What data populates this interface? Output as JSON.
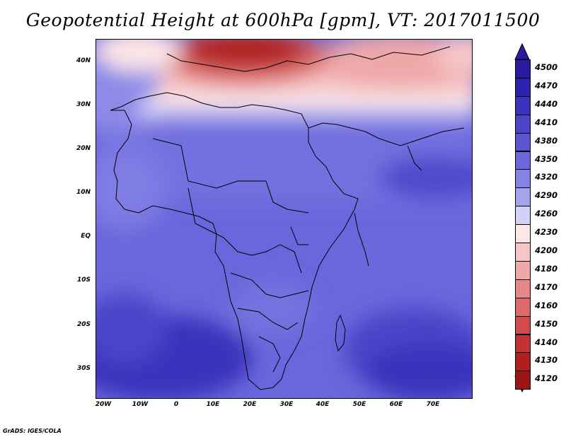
{
  "title": "Geopotential Height at 600hPa [gpm], VT: 2017011500",
  "credit": "GrADS: IGES/COLA",
  "map": {
    "lat_ticks": [
      "40N",
      "30N",
      "20N",
      "10N",
      "EQ",
      "10S",
      "20S",
      "30S"
    ],
    "lon_ticks": [
      "20W",
      "10W",
      "0",
      "10E",
      "20E",
      "30E",
      "40E",
      "50E",
      "60E",
      "70E"
    ]
  },
  "colorbar": {
    "levels": [
      "4500",
      "4470",
      "4440",
      "4410",
      "4380",
      "4350",
      "4320",
      "4290",
      "4260",
      "4230",
      "4200",
      "4180",
      "4170",
      "4160",
      "4150",
      "4140",
      "4130",
      "4120"
    ],
    "colors": [
      "#2a1aa0",
      "#2d22b0",
      "#3a32bc",
      "#4a44c8",
      "#5a55d2",
      "#6a66dc",
      "#8583e6",
      "#a5a3ee",
      "#d2d1f8",
      "#fde6e6",
      "#f6c6c6",
      "#efa8a8",
      "#e68888",
      "#dd6a6a",
      "#d24c4c",
      "#c33232",
      "#b01e1e",
      "#9c1414"
    ]
  }
}
